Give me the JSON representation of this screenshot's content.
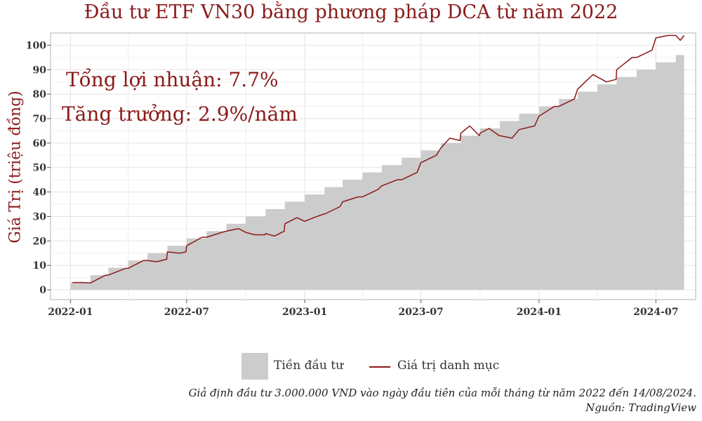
{
  "title": "Đầu tư ETF VN30 bằng phương pháp DCA từ năm 2022",
  "ylabel": "Giá Trị (triệu đồng)",
  "stats": {
    "profit": "Tổng lợi nhuận: 7.7%",
    "growth": "Tăng trưởng: 2.9%/năm"
  },
  "legend": {
    "invested": "Tiền đầu tư",
    "portfolio": "Giá trị danh mục"
  },
  "footnote": {
    "assumption": "Giả định đầu tư 3.000.000 VND vào ngày đầu tiên của mỗi tháng từ năm 2022 đến 14/08/2024.",
    "source": "Nguồn: TradingView"
  },
  "colors": {
    "accent": "#8b1a1a",
    "area": "#cccccc"
  },
  "chart_data": {
    "type": "area",
    "xlabel": "",
    "ylabel": "Giá Trị (triệu đồng)",
    "ylim": [
      -4,
      105
    ],
    "xlim": [
      "2021-12-01",
      "2024-09-01"
    ],
    "xtick_labels": [
      "2022-01",
      "2022-07",
      "2023-01",
      "2023-07",
      "2024-01",
      "2024-07"
    ],
    "ytick_labels": [
      "0",
      "10",
      "20",
      "30",
      "40",
      "50",
      "60",
      "70",
      "80",
      "90",
      "100"
    ],
    "grid": true,
    "legend_position": "bottom",
    "series": [
      {
        "name": "Tiền đầu tư",
        "type": "step-area",
        "x": [
          "2022-01",
          "2022-02",
          "2022-03",
          "2022-04",
          "2022-05",
          "2022-06",
          "2022-07",
          "2022-08",
          "2022-09",
          "2022-10",
          "2022-11",
          "2022-12",
          "2023-01",
          "2023-02",
          "2023-03",
          "2023-04",
          "2023-05",
          "2023-06",
          "2023-07",
          "2023-08",
          "2023-09",
          "2023-10",
          "2023-11",
          "2023-12",
          "2024-01",
          "2024-02",
          "2024-03",
          "2024-04",
          "2024-05",
          "2024-06",
          "2024-07",
          "2024-08"
        ],
        "y": [
          3,
          6,
          9,
          12,
          15,
          18,
          21,
          24,
          27,
          30,
          33,
          36,
          39,
          42,
          45,
          48,
          51,
          54,
          57,
          60,
          63,
          66,
          69,
          72,
          75,
          78,
          81,
          84,
          87,
          90,
          93,
          96
        ]
      },
      {
        "name": "Giá trị danh mục",
        "type": "line",
        "x": [
          "2022-01-04",
          "2022-01-20",
          "2022-02-01",
          "2022-02-25",
          "2022-03-01",
          "2022-03-28",
          "2022-04-01",
          "2022-04-25",
          "2022-05-01",
          "2022-05-15",
          "2022-05-31",
          "2022-06-01",
          "2022-06-20",
          "2022-06-30",
          "2022-07-01",
          "2022-07-25",
          "2022-08-01",
          "2022-08-25",
          "2022-09-01",
          "2022-09-20",
          "2022-10-01",
          "2022-10-15",
          "2022-10-31",
          "2022-11-01",
          "2022-11-15",
          "2022-11-30",
          "2022-12-01",
          "2022-12-20",
          "2023-01-01",
          "2023-01-15",
          "2023-01-31",
          "2023-02-01",
          "2023-02-25",
          "2023-03-01",
          "2023-03-25",
          "2023-04-01",
          "2023-04-25",
          "2023-05-01",
          "2023-05-25",
          "2023-06-01",
          "2023-06-25",
          "2023-07-01",
          "2023-07-25",
          "2023-08-01",
          "2023-08-15",
          "2023-08-31",
          "2023-09-01",
          "2023-09-15",
          "2023-09-30",
          "2023-10-01",
          "2023-10-15",
          "2023-10-31",
          "2023-11-01",
          "2023-11-20",
          "2023-12-01",
          "2023-12-25",
          "2024-01-01",
          "2024-01-25",
          "2024-02-01",
          "2024-02-25",
          "2024-03-01",
          "2024-03-25",
          "2024-04-01",
          "2024-04-15",
          "2024-04-30",
          "2024-05-01",
          "2024-05-25",
          "2024-06-01",
          "2024-06-25",
          "2024-07-01",
          "2024-07-20",
          "2024-08-01",
          "2024-08-08",
          "2024-08-14"
        ],
        "y": [
          3,
          3,
          2.8,
          6,
          6,
          8.8,
          8.8,
          12,
          12,
          11.5,
          12.5,
          15.5,
          15,
          15.5,
          18,
          21.5,
          21.5,
          23.5,
          24,
          25,
          23.5,
          22.5,
          22.5,
          23,
          22,
          24,
          27,
          29.5,
          28,
          29.5,
          31,
          31,
          34,
          36,
          38,
          38,
          41,
          42.5,
          45,
          45,
          48,
          52,
          55,
          58,
          62,
          61,
          64,
          67,
          63,
          64,
          66,
          63,
          63,
          62,
          65.5,
          67,
          71,
          75,
          75,
          78,
          82,
          88,
          87,
          85,
          86,
          90,
          95,
          95,
          98,
          103,
          104,
          104,
          102,
          104
        ]
      }
    ]
  }
}
